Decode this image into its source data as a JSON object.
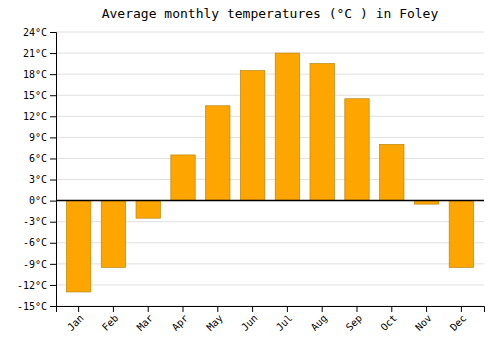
{
  "chart_data": {
    "type": "bar",
    "title": "Average monthly temperatures (°C ) in Foley",
    "categories": [
      "Jan",
      "Feb",
      "Mar",
      "Apr",
      "May",
      "Jun",
      "Jul",
      "Aug",
      "Sep",
      "Oct",
      "Nov",
      "Dec"
    ],
    "values": [
      -13,
      -9.5,
      -2.5,
      6.5,
      13.5,
      18.5,
      21.0,
      19.5,
      14.5,
      8.0,
      -0.5,
      -9.5
    ],
    "color": "#FFA500",
    "ylim": [
      -15,
      24
    ],
    "yticks": [
      {
        "value": -15,
        "label": "-15°C"
      },
      {
        "value": -12,
        "label": "-12°C"
      },
      {
        "value": -9,
        "label": "-9°C"
      },
      {
        "value": -6,
        "label": "-6°C"
      },
      {
        "value": -3,
        "label": "-3°C"
      },
      {
        "value": 0,
        "label": "0°C"
      },
      {
        "value": 3,
        "label": "3°C"
      },
      {
        "value": 6,
        "label": "6°C"
      },
      {
        "value": 9,
        "label": "9°C"
      },
      {
        "value": 12,
        "label": "12°C"
      },
      {
        "value": 15,
        "label": "15°C"
      },
      {
        "value": 18,
        "label": "18°C"
      },
      {
        "value": 21,
        "label": "21°C"
      },
      {
        "value": 24,
        "label": "24°C"
      }
    ],
    "grid": true
  }
}
